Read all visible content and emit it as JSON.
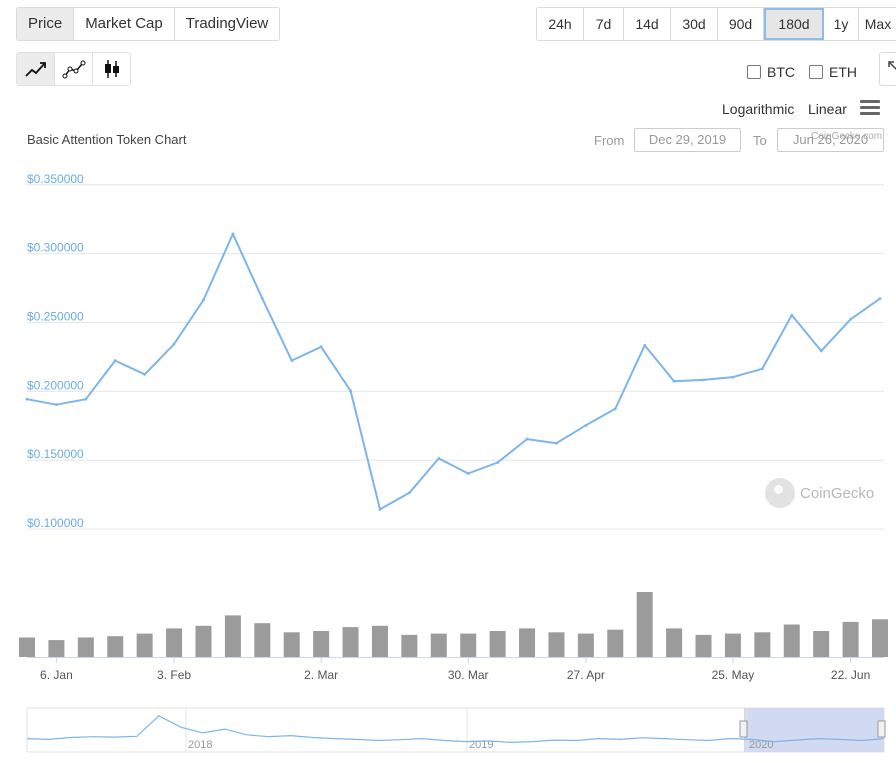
{
  "tabs": [
    {
      "label": "Price",
      "active": true
    },
    {
      "label": "Market Cap",
      "active": false
    },
    {
      "label": "TradingView",
      "active": false
    }
  ],
  "ranges": [
    {
      "label": "24h",
      "active": false
    },
    {
      "label": "7d",
      "active": false
    },
    {
      "label": "14d",
      "active": false
    },
    {
      "label": "30d",
      "active": false
    },
    {
      "label": "90d",
      "active": false
    },
    {
      "label": "180d",
      "active": true
    },
    {
      "label": "1y",
      "active": false
    },
    {
      "label": "Max",
      "active": false
    }
  ],
  "chart_types": [
    {
      "icon": "line-chart-icon",
      "active": true
    },
    {
      "icon": "point-line-chart-icon",
      "active": false
    },
    {
      "icon": "candlestick-chart-icon",
      "active": false
    }
  ],
  "compare": [
    {
      "label": "BTC",
      "checked": false
    },
    {
      "label": "ETH",
      "checked": false
    }
  ],
  "scale": {
    "logarithmic": "Logarithmic",
    "linear": "Linear"
  },
  "chart_title": "Basic Attention Token Chart",
  "date_range": {
    "from_label": "From",
    "from_value": "Dec 29, 2019",
    "to_label": "To",
    "to_value": "Jun 26, 2020"
  },
  "credit": "CoinGecko.com",
  "watermark": "CoinGecko",
  "colors": {
    "line": "#7cb5ec",
    "volume": "#8a8a8a",
    "accent": "#8fbce6"
  },
  "chart_data": {
    "type": "line",
    "title": "Basic Attention Token Chart",
    "series": [],
    "x": [
      "Dec 30",
      "Jan 6",
      "Jan 13",
      "Jan 20",
      "Jan 27",
      "Feb 3",
      "Feb 10",
      "Feb 14",
      "Feb 17",
      "Feb 24",
      "Mar 2",
      "Mar 9",
      "Mar 12",
      "Mar 16",
      "Mar 23",
      "Mar 30",
      "Apr 6",
      "Apr 13",
      "Apr 20",
      "Apr 27",
      "May 4",
      "May 6",
      "May 11",
      "May 18",
      "May 25",
      "Jun 1",
      "Jun 8",
      "Jun 15",
      "Jun 22",
      "Jun 26"
    ],
    "y": [
      0.19,
      0.186,
      0.19,
      0.218,
      0.208,
      0.23,
      0.262,
      0.31,
      0.263,
      0.218,
      0.228,
      0.196,
      0.11,
      0.122,
      0.147,
      0.136,
      0.144,
      0.161,
      0.158,
      0.171,
      0.183,
      0.229,
      0.203,
      0.204,
      0.206,
      0.212,
      0.251,
      0.225,
      0.248,
      0.263
    ],
    "volume": [
      15,
      13,
      15,
      16,
      18,
      22,
      24,
      32,
      26,
      19,
      20,
      23,
      24,
      17,
      18,
      18,
      20,
      22,
      19,
      18,
      21,
      50,
      22,
      17,
      18,
      19,
      25,
      20,
      27,
      29
    ],
    "ylim": [
      0.095,
      0.36
    ],
    "yticks": [
      "$0.350000",
      "$0.300000",
      "$0.250000",
      "$0.200000",
      "$0.150000",
      "$0.100000"
    ],
    "ytick_values": [
      0.35,
      0.3,
      0.25,
      0.2,
      0.15,
      0.1
    ],
    "xticks": [
      "6. Jan",
      "3. Feb",
      "2. Mar",
      "30. Mar",
      "27. Apr",
      "25. May",
      "22. Jun"
    ],
    "xtick_index": [
      1,
      5,
      10,
      15,
      19,
      24,
      28
    ],
    "navigator_labels": [
      "2018",
      "2019",
      "2020"
    ],
    "grid": true,
    "legend": "none"
  }
}
